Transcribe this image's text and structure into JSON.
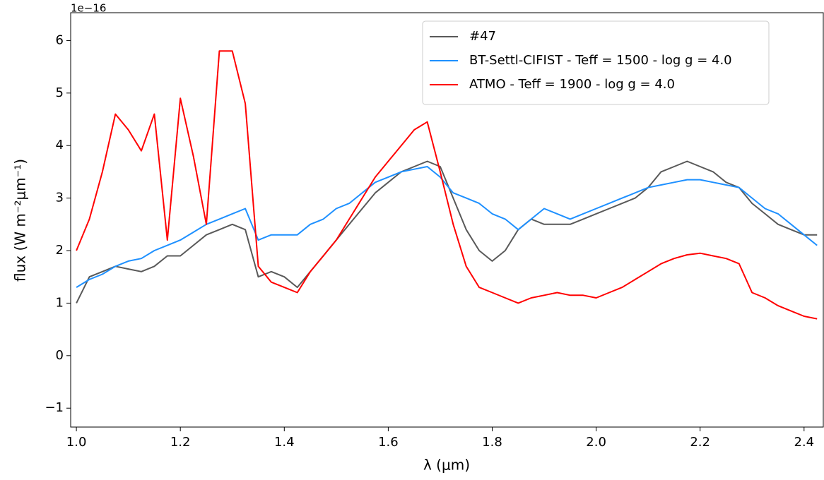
{
  "chart_data": {
    "type": "line",
    "offset_text": "1e−16",
    "x_label": "λ (μm)",
    "y_label": "flux (W m⁻²μm⁻¹)",
    "x": [
      1.0,
      1.025,
      1.05,
      1.075,
      1.1,
      1.125,
      1.15,
      1.175,
      1.2,
      1.225,
      1.25,
      1.275,
      1.3,
      1.325,
      1.35,
      1.375,
      1.4,
      1.425,
      1.45,
      1.475,
      1.5,
      1.525,
      1.55,
      1.575,
      1.6,
      1.625,
      1.65,
      1.675,
      1.7,
      1.725,
      1.75,
      1.775,
      1.8,
      1.825,
      1.85,
      1.875,
      1.9,
      1.925,
      1.95,
      1.975,
      2.0,
      2.025,
      2.05,
      2.075,
      2.1,
      2.125,
      2.15,
      2.175,
      2.2,
      2.225,
      2.25,
      2.275,
      2.3,
      2.325,
      2.35,
      2.375,
      2.4,
      2.425
    ],
    "series": [
      {
        "name": "#47",
        "color": "#595959",
        "values": [
          1.0,
          1.5,
          1.6,
          1.7,
          1.65,
          1.6,
          1.7,
          1.9,
          1.9,
          2.1,
          2.3,
          2.4,
          2.5,
          2.4,
          1.5,
          1.6,
          1.5,
          1.3,
          1.6,
          1.9,
          2.2,
          2.5,
          2.8,
          3.1,
          3.3,
          3.5,
          3.6,
          3.7,
          3.6,
          3.0,
          2.4,
          2.0,
          1.8,
          2.0,
          2.4,
          2.6,
          2.5,
          2.5,
          2.5,
          2.6,
          2.7,
          2.8,
          2.9,
          3.0,
          3.2,
          3.5,
          3.6,
          3.7,
          3.6,
          3.5,
          3.3,
          3.2,
          2.9,
          2.7,
          2.5,
          2.4,
          2.3,
          2.3
        ]
      },
      {
        "name": "BT-Settl-CIFIST - Teff = 1500 - log g = 4.0",
        "color": "#1e90ff",
        "values": [
          1.3,
          1.45,
          1.55,
          1.7,
          1.8,
          1.85,
          2.0,
          2.1,
          2.2,
          2.35,
          2.5,
          2.6,
          2.7,
          2.8,
          2.2,
          2.3,
          2.3,
          2.3,
          2.5,
          2.6,
          2.8,
          2.9,
          3.1,
          3.3,
          3.4,
          3.5,
          3.55,
          3.6,
          3.4,
          3.1,
          3.0,
          2.9,
          2.7,
          2.6,
          2.4,
          2.6,
          2.8,
          2.7,
          2.6,
          2.7,
          2.8,
          2.9,
          3.0,
          3.1,
          3.2,
          3.25,
          3.3,
          3.35,
          3.35,
          3.3,
          3.25,
          3.2,
          3.0,
          2.8,
          2.7,
          2.5,
          2.3,
          2.1
        ]
      },
      {
        "name": "ATMO - Teff = 1900 - log g = 4.0",
        "color": "#ff0000",
        "values": [
          2.0,
          2.6,
          3.5,
          4.6,
          4.3,
          3.9,
          4.6,
          2.2,
          4.9,
          3.8,
          2.5,
          5.8,
          5.8,
          4.8,
          1.7,
          1.4,
          1.3,
          1.2,
          1.6,
          1.9,
          2.2,
          2.6,
          3.0,
          3.4,
          3.7,
          4.0,
          4.3,
          4.45,
          3.5,
          2.5,
          1.7,
          1.3,
          1.2,
          1.1,
          1.0,
          1.1,
          1.15,
          1.2,
          1.15,
          1.15,
          1.1,
          1.2,
          1.3,
          1.45,
          1.6,
          1.75,
          1.85,
          1.92,
          1.95,
          1.9,
          1.85,
          1.75,
          1.2,
          1.1,
          0.95,
          0.85,
          0.75,
          0.7
        ]
      }
    ],
    "xlim": [
      0.989,
      2.437
    ],
    "ylim": [
      -1.36,
      6.53
    ],
    "xticks": [
      {
        "value": 1,
        "label": "1.0"
      },
      {
        "value": 1.2,
        "label": "1.2"
      },
      {
        "value": 1.4,
        "label": "1.4"
      },
      {
        "value": 1.6,
        "label": "1.6"
      },
      {
        "value": 1.8,
        "label": "1.8"
      },
      {
        "value": 2,
        "label": "2.0"
      },
      {
        "value": 2.2,
        "label": "2.2"
      },
      {
        "value": 2.4,
        "label": "2.4"
      }
    ],
    "yticks": [
      {
        "value": -1,
        "label": "−1"
      },
      0,
      1,
      2,
      3,
      4,
      5,
      6
    ],
    "legend": "upper right",
    "grid": false
  }
}
